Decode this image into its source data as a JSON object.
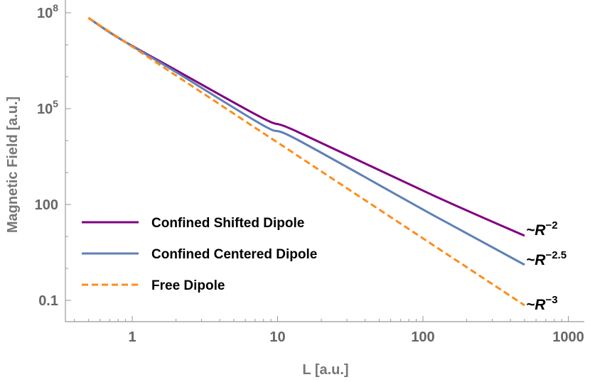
{
  "chart_data": {
    "type": "line",
    "xlabel": "L [a.u.]",
    "ylabel": "Magnetic Field [a.u.]",
    "xscale": "log",
    "yscale": "log",
    "xlim": [
      0.35,
      1300
    ],
    "ylim": [
      0.02,
      250000000
    ],
    "x_ticks": [
      {
        "v": 1,
        "label": "1"
      },
      {
        "v": 10,
        "label": "10"
      },
      {
        "v": 100,
        "label": "100"
      },
      {
        "v": 1000,
        "label": "1000"
      }
    ],
    "y_ticks": [
      {
        "v": 0.1,
        "label": "0.1",
        "base": "",
        "exp": ""
      },
      {
        "v": 100,
        "label": "100",
        "base": "",
        "exp": ""
      },
      {
        "v": 100000,
        "label": "",
        "base": "10",
        "exp": "5"
      },
      {
        "v": 100000000,
        "label": "",
        "base": "10",
        "exp": "8"
      }
    ],
    "grid": false,
    "legend_placement": "bottom-left",
    "series": [
      {
        "name": "Confined Shifted Dipole",
        "color": "#800080",
        "dash": false,
        "x": [
          0.5,
          0.83,
          2,
          8,
          13.5,
          117,
          500
        ],
        "y": [
          69000000,
          15000000,
          1600000,
          49000,
          19500,
          195,
          10.5
        ],
        "annotation": {
          "prefix": "~R",
          "exp": "−2"
        }
      },
      {
        "name": "Confined Centered Dipole",
        "color": "#5e81b5",
        "dash": false,
        "x": [
          0.5,
          0.83,
          2,
          8,
          13.5,
          117,
          500
        ],
        "y": [
          69000000,
          15000000,
          1400000,
          29500,
          11000,
          47,
          1.3
        ],
        "annotation": {
          "prefix": "~R",
          "exp": "−2.5"
        }
      },
      {
        "name": "Free Dipole",
        "color": "#ff8c1a",
        "dash": true,
        "x": [
          0.5,
          1,
          10,
          100,
          500
        ],
        "y": [
          69000000,
          8700000,
          8700,
          8.7,
          0.07
        ],
        "annotation": {
          "prefix": "~R",
          "exp": "−3"
        }
      }
    ]
  }
}
